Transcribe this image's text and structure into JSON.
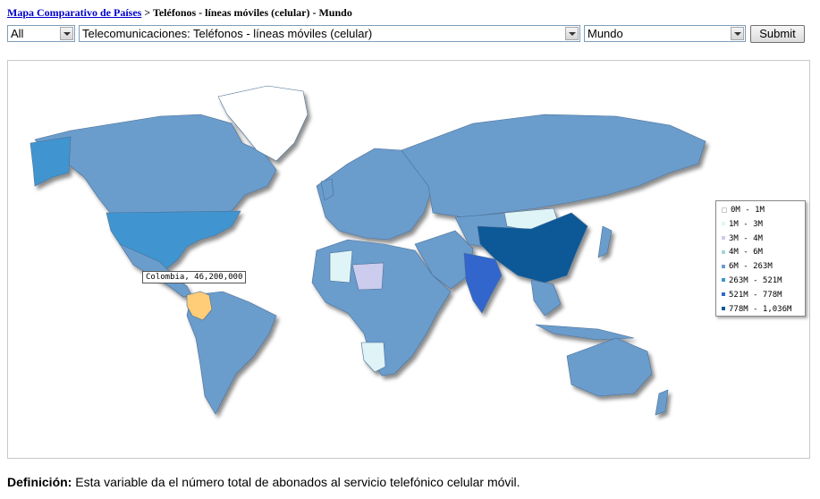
{
  "breadcrumb": {
    "link": "Mapa Comparativo de Países",
    "rest": " > Teléfonos - líneas móviles (celular) - Mundo"
  },
  "filters": {
    "category": "All",
    "variable": "Telecomunicaciones: Teléfonos - líneas móviles (celular)",
    "region": "Mundo",
    "submit": "Submit"
  },
  "legend": [
    {
      "label": "0M - 1M",
      "color": "#ffffff"
    },
    {
      "label": "1M - 3M",
      "color": "#dff4f6"
    },
    {
      "label": "3M - 4M",
      "color": "#ccccee"
    },
    {
      "label": "4M - 6M",
      "color": "#a7d2d8"
    },
    {
      "label": "6M - 263M",
      "color": "#6b9ccc"
    },
    {
      "label": "263M - 521M",
      "color": "#3f95d0"
    },
    {
      "label": "521M - 778M",
      "color": "#3366cc"
    },
    {
      "label": "778M - 1,036M",
      "color": "#0c5896"
    }
  ],
  "tooltip": "Colombia, 46,200,000",
  "highlight_color": "#ffcc77",
  "definition": {
    "label": "Definición:",
    "text": " Esta variable da el número total de abonados al servicio telefónico celular móvil."
  }
}
